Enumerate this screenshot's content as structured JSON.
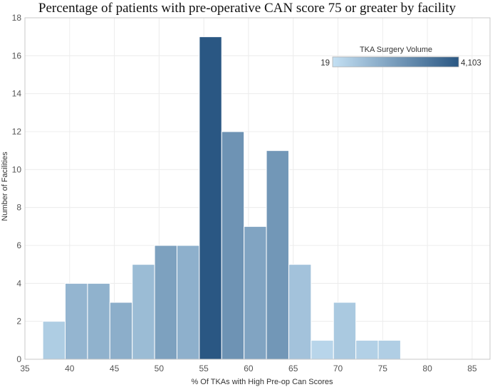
{
  "chart_data": {
    "type": "bar",
    "title": "Percentage of patients with pre-operative CAN score 75 or greater by facility",
    "xlabel": "% Of TKAs with High Pre-op Can Scores",
    "ylabel": "Number of Facilities",
    "xlim": [
      35,
      87
    ],
    "ylim": [
      0,
      18
    ],
    "x_ticks": [
      35,
      40,
      45,
      50,
      55,
      60,
      65,
      70,
      75,
      80,
      85
    ],
    "y_ticks": [
      0,
      2,
      4,
      6,
      8,
      10,
      12,
      14,
      16,
      18
    ],
    "bin_width": 2.5,
    "grid": true,
    "bins": [
      {
        "start": 37.0,
        "count": 2,
        "volume": 600
      },
      {
        "start": 39.5,
        "count": 4,
        "volume": 1300
      },
      {
        "start": 42.0,
        "count": 4,
        "volume": 1400
      },
      {
        "start": 44.5,
        "count": 3,
        "volume": 1500
      },
      {
        "start": 47.0,
        "count": 5,
        "volume": 1100
      },
      {
        "start": 49.5,
        "count": 6,
        "volume": 1900
      },
      {
        "start": 52.0,
        "count": 6,
        "volume": 1450
      },
      {
        "start": 54.5,
        "count": 17,
        "volume": 4103
      },
      {
        "start": 57.0,
        "count": 12,
        "volume": 2300
      },
      {
        "start": 59.5,
        "count": 7,
        "volume": 1800
      },
      {
        "start": 62.0,
        "count": 11,
        "volume": 2200
      },
      {
        "start": 64.5,
        "count": 5,
        "volume": 900
      },
      {
        "start": 67.0,
        "count": 1,
        "volume": 350
      },
      {
        "start": 69.5,
        "count": 3,
        "volume": 700
      },
      {
        "start": 72.0,
        "count": 1,
        "volume": 500
      },
      {
        "start": 74.5,
        "count": 1,
        "volume": 550
      }
    ],
    "legend": {
      "title": "TKA Surgery Volume",
      "min_label": "19",
      "max_label": "4,103",
      "min": 19,
      "max": 4103,
      "color_low": "#c4e0f3",
      "color_high": "#2a5783",
      "placement": "top-right"
    }
  }
}
